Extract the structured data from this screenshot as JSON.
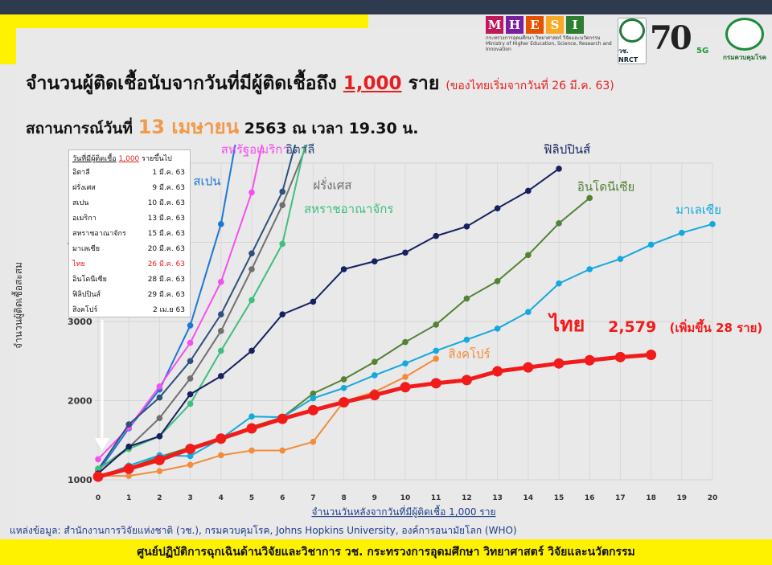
{
  "header": {
    "mhesi_letters": [
      "M",
      "H",
      "E",
      "S",
      "I"
    ],
    "mhesi_colors": [
      "#c2185b",
      "#7b1fa2",
      "#e65100",
      "#f9a825",
      "#2e7d32"
    ],
    "mhesi_caption_th": "กระทรวงการอุดมศึกษา วิทยาศาสตร์ วิจัยและนวัตกรรม",
    "mhesi_caption_en": "Ministry of Higher Education, Science, Research and Innovation",
    "nrct_label": "วช. NRCT",
    "anniv_label": "70",
    "anniv_5g": "5G",
    "ddc_label": "กรมควบคุมโรค"
  },
  "title": {
    "main": "จำนวนผู้ติดเชื้อนับจากวันที่มีผู้ติดเชื้อถึง",
    "highlight": "1,000",
    "unit": "ราย",
    "note": "(ของไทยเริ่มจากวันที่ 26 มี.ค. 63)"
  },
  "subtitle": {
    "prefix": "สถานการณ์วันที่",
    "date": "13 เมษายน",
    "rest": "2563 ณ เวลา 19.30 น."
  },
  "table": {
    "header_prefix": "วันที่มีผู้ติดเชื้อ",
    "header_num": "1,000",
    "header_suffix": "รายขึ้นไป",
    "rows": [
      {
        "country": "อิตาลี",
        "date": "1 มี.ค. 63"
      },
      {
        "country": "ฝรั่งเศส",
        "date": "9 มี.ค. 63"
      },
      {
        "country": "สเปน",
        "date": "10 มี.ค. 63"
      },
      {
        "country": "อเมริกา",
        "date": "13 มี.ค. 63"
      },
      {
        "country": "สหราชอาณาจักร",
        "date": "15 มี.ค. 63"
      },
      {
        "country": "มาเลเซีย",
        "date": "20 มี.ค. 63"
      },
      {
        "country": "ไทย",
        "date": "26 มี.ค. 63"
      },
      {
        "country": "อินโดนีเซีย",
        "date": "28 มี.ค. 63"
      },
      {
        "country": "ฟิลิปปินส์",
        "date": "29 มี.ค. 63"
      },
      {
        "country": "สิงคโปร์",
        "date": "2 เม.ย 63"
      }
    ]
  },
  "thai_annotation": {
    "name": "ไทย",
    "value": "2,579",
    "increase": "(เพิ่มขึ้น 28 ราย)"
  },
  "source": "แหล่งข้อมูล: สำนักงานการวิจัยแห่งชาติ (วช.), กรมควบคุมโรค, Johns Hopkins University, องค์การอนามัยโลก (WHO)",
  "footer": "ศูนย์ปฏิบัติการฉุกเฉินด้านวิจัยและวิชาการ   วช.   กระทรวงการอุดมศึกษา วิทยาศาสตร์ วิจัยและนวัตกรรม",
  "chart_data": {
    "type": "line",
    "xlabel": "จำนวนวันหลังจากวันที่มีผู้ติดเชื้อ 1,000 ราย",
    "ylabel": "จำนวนผู้ติดเชื้อสะสม",
    "xlim": [
      0,
      20
    ],
    "ylim": [
      1000,
      5000
    ],
    "xticks": [
      "0",
      "1",
      "2",
      "3",
      "4",
      "5",
      "6",
      "7",
      "8",
      "9",
      "10",
      "11",
      "12",
      "13",
      "14",
      "15",
      "16",
      "17",
      "18",
      "19",
      "20"
    ],
    "yticks": [
      "1000",
      "2000",
      "3000",
      "4000",
      "5000"
    ],
    "series": [
      {
        "name": "สเปน",
        "color": "#1f77d4",
        "width": 2,
        "x": [
          0,
          1,
          2,
          3,
          4,
          5
        ],
        "y": [
          1100,
          1650,
          2140,
          2950,
          4230,
          6390
        ]
      },
      {
        "name": "สหรัฐอเมริกา",
        "color": "#f54ff0",
        "width": 2,
        "x": [
          0,
          1,
          2,
          3,
          4,
          5,
          6
        ],
        "y": [
          1260,
          1660,
          2180,
          2730,
          3500,
          4630,
          6430
        ]
      },
      {
        "name": "อิตาลี",
        "color": "#2f4f7f",
        "width": 2,
        "x": [
          0,
          1,
          2,
          3,
          4,
          5,
          6,
          7
        ],
        "y": [
          1130,
          1700,
          2040,
          2500,
          3090,
          3860,
          4640,
          6070
        ]
      },
      {
        "name": "ฝรั่งเศส",
        "color": "#707070",
        "width": 2,
        "x": [
          0,
          1,
          2,
          3,
          4,
          5,
          6,
          7
        ],
        "y": [
          1130,
          1410,
          1780,
          2280,
          2880,
          3660,
          4470,
          5430
        ]
      },
      {
        "name": "สหราชอาณาจักร",
        "color": "#3dbf7f",
        "width": 2,
        "x": [
          0,
          1,
          2,
          3,
          4,
          5,
          6,
          7
        ],
        "y": [
          1140,
          1390,
          1550,
          1960,
          2630,
          3270,
          3980,
          5680
        ]
      },
      {
        "name": "ฟิลิปปินส์",
        "color": "#16215e",
        "width": 2,
        "x": [
          0,
          1,
          2,
          3,
          4,
          5,
          6,
          7,
          8,
          9,
          10,
          11,
          12,
          13,
          14,
          15
        ],
        "y": [
          1080,
          1420,
          1550,
          2080,
          2310,
          2630,
          3090,
          3250,
          3660,
          3760,
          3870,
          4080,
          4200,
          4430,
          4650,
          4930
        ]
      },
      {
        "name": "อินโดนีเซีย",
        "color": "#548235",
        "width": 2,
        "x": [
          0,
          1,
          2,
          3,
          4,
          5,
          6,
          7,
          8,
          9,
          10,
          11,
          12,
          13,
          14,
          15,
          16
        ],
        "y": [
          1050,
          1150,
          1290,
          1410,
          1530,
          1670,
          1790,
          2090,
          2270,
          2490,
          2740,
          2960,
          3290,
          3510,
          3840,
          4240,
          4560
        ]
      },
      {
        "name": "มาเลเซีย",
        "color": "#14a8e0",
        "width": 2,
        "x": [
          0,
          1,
          2,
          3,
          4,
          5,
          6,
          7,
          8,
          9,
          10,
          11,
          12,
          13,
          14,
          15,
          16,
          17,
          18,
          19,
          20
        ],
        "y": [
          1030,
          1180,
          1310,
          1300,
          1520,
          1800,
          1790,
          2030,
          2160,
          2320,
          2470,
          2630,
          2770,
          2910,
          3120,
          3480,
          3660,
          3790,
          3970,
          4120,
          4230
        ]
      },
      {
        "name": "สิงคโปร์",
        "color": "#f28c3a",
        "width": 2,
        "x": [
          0,
          1,
          2,
          3,
          4,
          5,
          6,
          7,
          8,
          9,
          10,
          11
        ],
        "y": [
          1050,
          1050,
          1110,
          1190,
          1310,
          1370,
          1370,
          1480,
          1990,
          2110,
          2300,
          2530
        ]
      },
      {
        "name": "ไทย",
        "color": "#f21b1b",
        "width": 5,
        "x": [
          0,
          1,
          2,
          3,
          4,
          5,
          6,
          7,
          8,
          9,
          10,
          11,
          12,
          13,
          14,
          15,
          16,
          17,
          18
        ],
        "y": [
          1040,
          1140,
          1250,
          1390,
          1520,
          1650,
          1770,
          1880,
          1980,
          2070,
          2170,
          2220,
          2260,
          2370,
          2420,
          2470,
          2510,
          2550,
          2579
        ]
      }
    ],
    "labels": [
      {
        "text": "สเปน",
        "color": "#1f77d4",
        "x": 3.1,
        "y": 4720
      },
      {
        "text": "สหรัฐอเมริกา",
        "color": "#f54ff0",
        "x": 4.0,
        "y": 5120
      },
      {
        "text": "อิตาลี",
        "color": "#2f4f7f",
        "x": 6.1,
        "y": 5120
      },
      {
        "text": "ฝรั่งเศส",
        "color": "#707070",
        "x": 7.0,
        "y": 4670
      },
      {
        "text": "สหราชอาณาจักร",
        "color": "#3dbf7f",
        "x": 6.7,
        "y": 4370
      },
      {
        "text": "ฟิลิปปินส์",
        "color": "#16215e",
        "x": 14.5,
        "y": 5120
      },
      {
        "text": "อินโดนีเซีย",
        "color": "#548235",
        "x": 15.6,
        "y": 4650
      },
      {
        "text": "มาเลเซีย",
        "color": "#14a8e0",
        "x": 18.8,
        "y": 4360
      },
      {
        "text": "สิงคโปร์",
        "color": "#f28c3a",
        "x": 11.4,
        "y": 2540
      }
    ]
  }
}
